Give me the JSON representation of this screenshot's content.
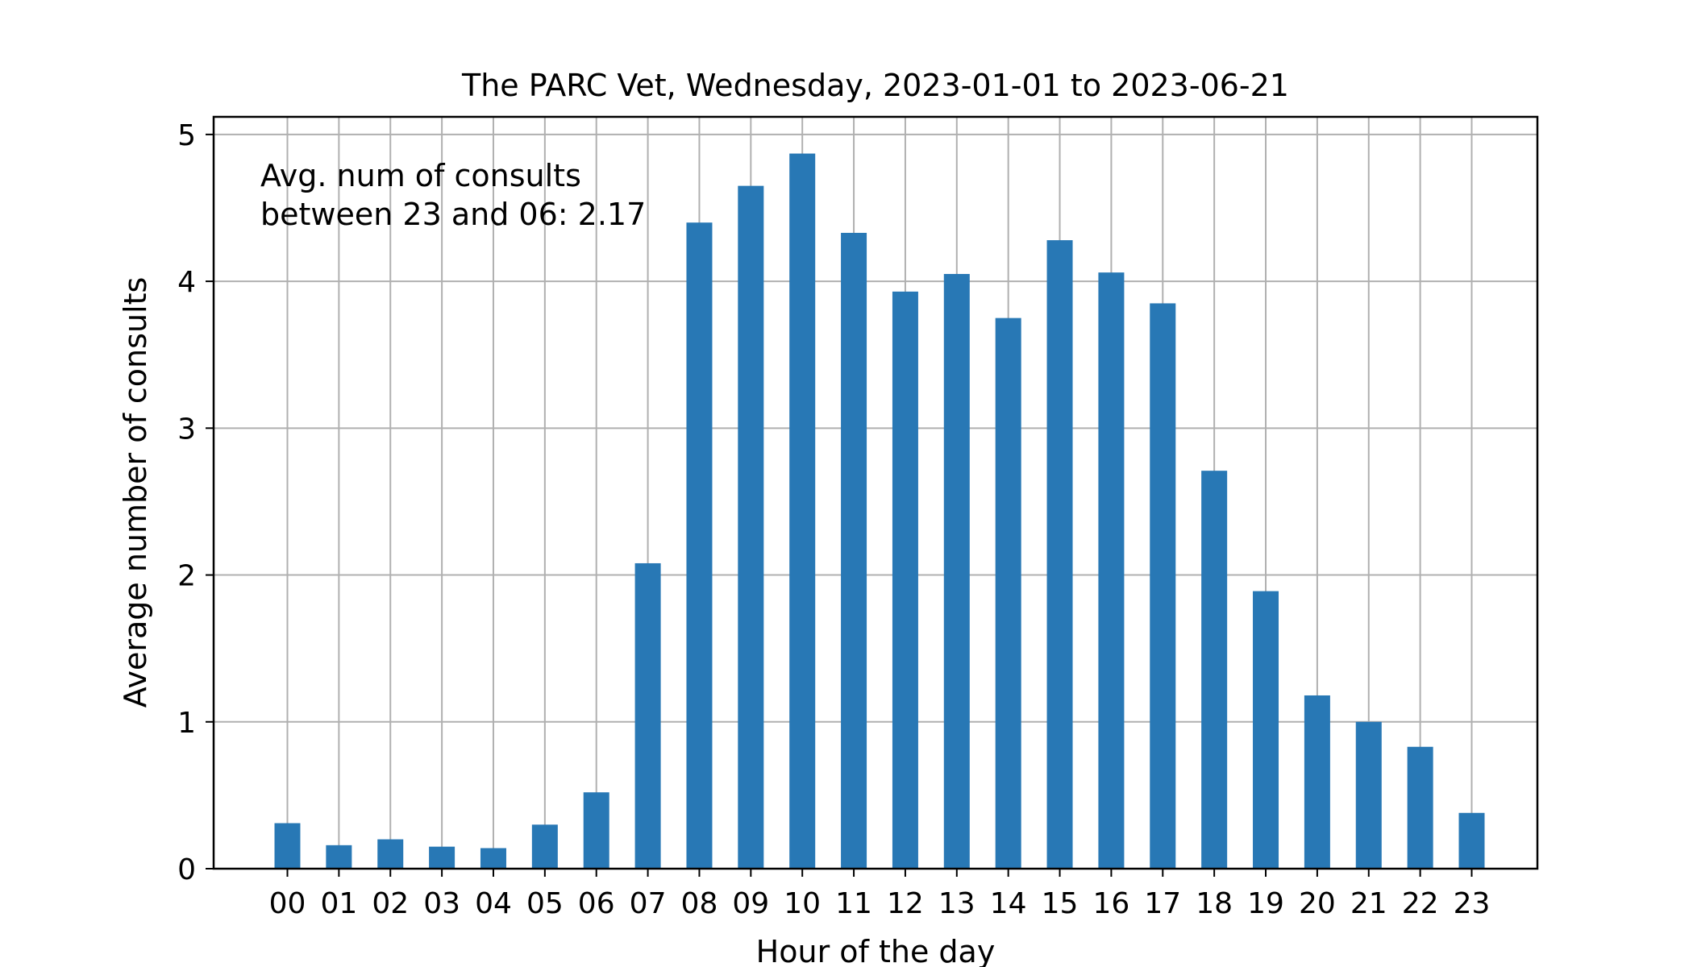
{
  "chart_data": {
    "type": "bar",
    "title": "The PARC Vet, Wednesday, 2023-01-01 to 2023-06-21",
    "xlabel": "Hour of the day",
    "ylabel": "Average number of consults",
    "categories": [
      "00",
      "01",
      "02",
      "03",
      "04",
      "05",
      "06",
      "07",
      "08",
      "09",
      "10",
      "11",
      "12",
      "13",
      "14",
      "15",
      "16",
      "17",
      "18",
      "19",
      "20",
      "21",
      "22",
      "23"
    ],
    "values": [
      0.31,
      0.16,
      0.2,
      0.15,
      0.14,
      0.3,
      0.52,
      2.08,
      4.4,
      4.65,
      4.87,
      4.33,
      3.93,
      4.05,
      3.75,
      4.28,
      4.06,
      3.85,
      2.71,
      1.89,
      1.18,
      1.0,
      0.83,
      0.38
    ],
    "ylim": [
      0,
      5.12
    ],
    "yticks": [
      "0",
      "1",
      "2",
      "3",
      "4",
      "5"
    ],
    "grid": true,
    "bar_color": "#2878b5",
    "annotation": {
      "line1": "Avg. num of consults",
      "line2": "between 23 and 06: 2.17"
    }
  }
}
